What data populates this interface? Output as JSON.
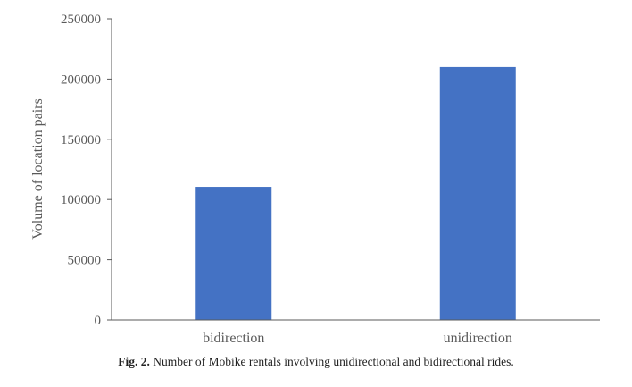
{
  "chart_data": {
    "type": "bar",
    "title": "",
    "xlabel": "",
    "ylabel": "Volume of location pairs",
    "categories": [
      "bidirection",
      "unidirection"
    ],
    "series": [
      {
        "values": [
          110500,
          210000
        ]
      }
    ],
    "ylim": [
      0,
      250000
    ],
    "yticks": [
      0,
      50000,
      100000,
      150000,
      200000,
      250000
    ],
    "grid": false,
    "legend": "none",
    "bar_color": "#4472C4",
    "axis_color": "#595959"
  },
  "caption": {
    "label": "Fig. 2.",
    "text": "Number of Mobike rentals involving unidirectional and bidirectional rides."
  }
}
